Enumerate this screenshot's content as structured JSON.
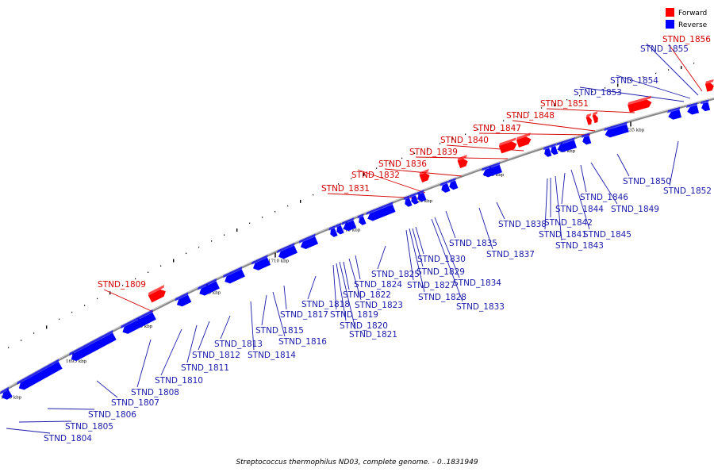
{
  "caption": "Streptococcus thermophilus ND03, complete genome. - 0..1831949",
  "legend": {
    "forward": {
      "label": "Forward",
      "color": "#ff0000"
    },
    "reverse": {
      "label": "Reverse",
      "color": "#0000ff"
    }
  },
  "colors": {
    "forward_label": "#d40000",
    "reverse_label": "#1a1aaa",
    "backbone": "#888888"
  },
  "ticks": [
    "1690 kbp",
    "1695 kbp",
    "1700 kbp",
    "1705 kbp",
    "1710 kbp",
    "1715 kbp",
    "1720 kbp",
    "1725 kbp",
    "1730 kbp",
    "1735 kbp"
  ],
  "genes": [
    {
      "name": "STND_1804",
      "strand": "reverse"
    },
    {
      "name": "STND_1805",
      "strand": "reverse"
    },
    {
      "name": "STND_1806",
      "strand": "reverse"
    },
    {
      "name": "STND_1807",
      "strand": "reverse"
    },
    {
      "name": "STND_1808",
      "strand": "reverse"
    },
    {
      "name": "STND_1809",
      "strand": "forward"
    },
    {
      "name": "STND_1810",
      "strand": "reverse"
    },
    {
      "name": "STND_1811",
      "strand": "reverse"
    },
    {
      "name": "STND_1812",
      "strand": "reverse"
    },
    {
      "name": "STND_1813",
      "strand": "reverse"
    },
    {
      "name": "STND_1814",
      "strand": "reverse"
    },
    {
      "name": "STND_1815",
      "strand": "reverse"
    },
    {
      "name": "STND_1816",
      "strand": "reverse"
    },
    {
      "name": "STND_1817",
      "strand": "reverse"
    },
    {
      "name": "STND_1818",
      "strand": "reverse"
    },
    {
      "name": "STND_1819",
      "strand": "reverse"
    },
    {
      "name": "STND_1820",
      "strand": "reverse"
    },
    {
      "name": "STND_1821",
      "strand": "reverse"
    },
    {
      "name": "STND_1822",
      "strand": "reverse"
    },
    {
      "name": "STND_1823",
      "strand": "reverse"
    },
    {
      "name": "STND_1824",
      "strand": "reverse"
    },
    {
      "name": "STND_1825",
      "strand": "reverse"
    },
    {
      "name": "STND_1827",
      "strand": "reverse"
    },
    {
      "name": "STND_1828",
      "strand": "reverse"
    },
    {
      "name": "STND_1829",
      "strand": "reverse"
    },
    {
      "name": "STND_1830",
      "strand": "reverse"
    },
    {
      "name": "STND_1831",
      "strand": "forward"
    },
    {
      "name": "STND_1832",
      "strand": "forward"
    },
    {
      "name": "STND_1833",
      "strand": "reverse"
    },
    {
      "name": "STND_1834",
      "strand": "reverse"
    },
    {
      "name": "STND_1835",
      "strand": "reverse"
    },
    {
      "name": "STND_1836",
      "strand": "forward"
    },
    {
      "name": "STND_1837",
      "strand": "reverse"
    },
    {
      "name": "STND_1838",
      "strand": "reverse"
    },
    {
      "name": "STND_1839",
      "strand": "forward"
    },
    {
      "name": "STND_1840",
      "strand": "forward"
    },
    {
      "name": "STND_1841",
      "strand": "reverse"
    },
    {
      "name": "STND_1842",
      "strand": "reverse"
    },
    {
      "name": "STND_1843",
      "strand": "reverse"
    },
    {
      "name": "STND_1844",
      "strand": "reverse"
    },
    {
      "name": "STND_1845",
      "strand": "reverse"
    },
    {
      "name": "STND_1846",
      "strand": "reverse"
    },
    {
      "name": "STND_1847",
      "strand": "forward"
    },
    {
      "name": "STND_1848",
      "strand": "forward"
    },
    {
      "name": "STND_1849",
      "strand": "reverse"
    },
    {
      "name": "STND_1850",
      "strand": "reverse"
    },
    {
      "name": "STND_1851",
      "strand": "forward"
    },
    {
      "name": "STND_1852",
      "strand": "reverse"
    },
    {
      "name": "STND_1853",
      "strand": "reverse"
    },
    {
      "name": "STND_1854",
      "strand": "reverse"
    },
    {
      "name": "STND_1855",
      "strand": "reverse"
    },
    {
      "name": "STND_1856",
      "strand": "forward"
    }
  ]
}
